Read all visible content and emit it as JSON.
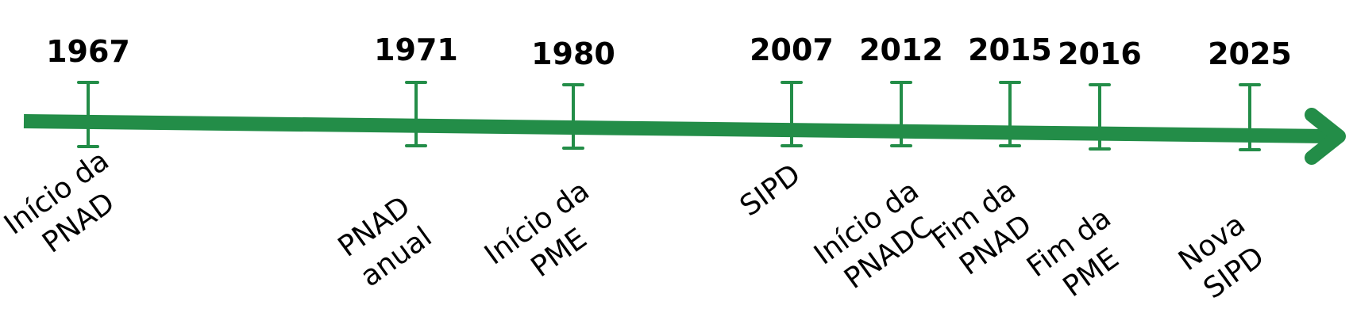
{
  "colors": {
    "timeline": "#238d48",
    "text": "#000000",
    "background": "#ffffff"
  },
  "events": [
    {
      "year": "1967",
      "label_lines": [
        "Início da",
        "PNAD"
      ]
    },
    {
      "year": "1971",
      "label_lines": [
        "PNAD",
        "anual"
      ]
    },
    {
      "year": "1980",
      "label_lines": [
        "Início da",
        "PME"
      ]
    },
    {
      "year": "2007",
      "label_lines": [
        "SIPD"
      ]
    },
    {
      "year": "2012",
      "label_lines": [
        "Início da",
        "PNADC"
      ]
    },
    {
      "year": "2015",
      "label_lines": [
        "Fim da",
        "PNAD"
      ]
    },
    {
      "year": "2016",
      "label_lines": [
        "Fim da",
        "PME"
      ]
    },
    {
      "year": "2025",
      "label_lines": [
        "Nova",
        "SIPD"
      ]
    }
  ]
}
